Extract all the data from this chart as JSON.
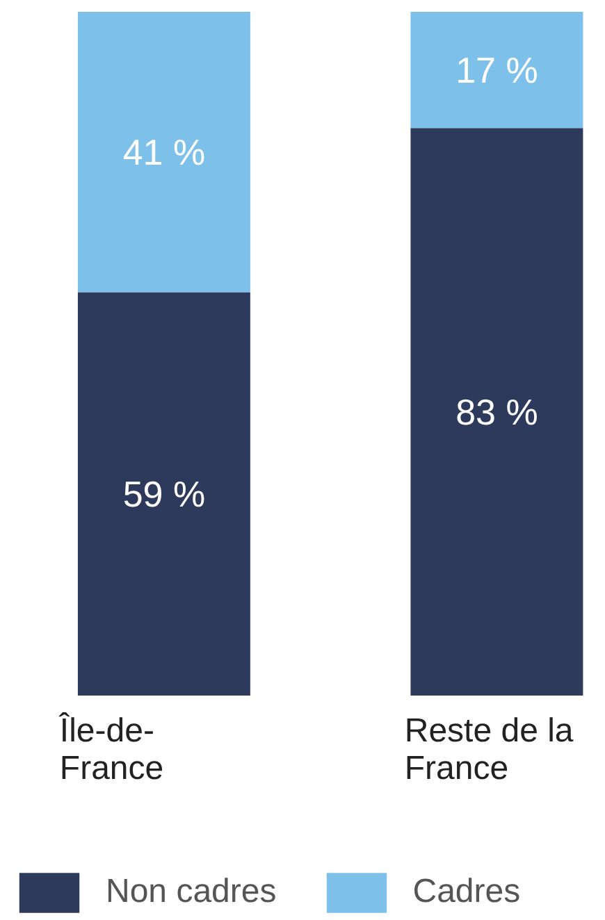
{
  "chart_data": {
    "type": "bar",
    "stacked": true,
    "categories": [
      "Île-de-France",
      "Reste de la France"
    ],
    "ylim": [
      0,
      100
    ],
    "series": [
      {
        "name": "Non cadres",
        "color": "#2e3a5c",
        "values": [
          59,
          83
        ],
        "value_labels": [
          "59 %",
          "83 %"
        ]
      },
      {
        "name": "Cadres",
        "color": "#7dc1ea",
        "values": [
          41,
          17
        ],
        "value_labels": [
          "41 %",
          "17 %"
        ]
      }
    ],
    "legend": "bottom",
    "grid": false
  }
}
